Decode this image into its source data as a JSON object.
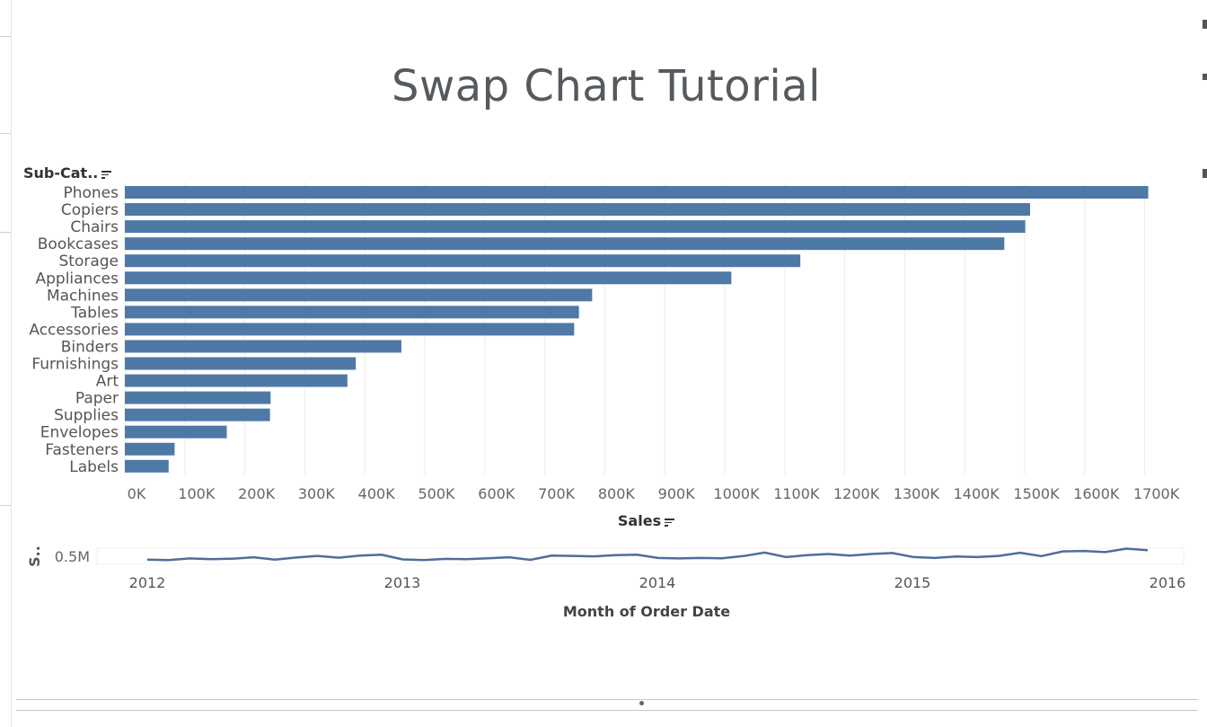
{
  "title": "Swap Chart Tutorial",
  "colors": {
    "bar": "#4e79a7",
    "line": "#4e6e99",
    "grid": "#ededed"
  },
  "chart_data": [
    {
      "type": "bar",
      "orientation": "horizontal",
      "ylabel": "Sub-Cat..",
      "xlabel": "Sales",
      "xlim": [
        0,
        1750000
      ],
      "grid": true,
      "categories": [
        "Phones",
        "Copiers",
        "Chairs",
        "Bookcases",
        "Storage",
        "Appliances",
        "Machines",
        "Tables",
        "Accessories",
        "Binders",
        "Furnishings",
        "Art",
        "Paper",
        "Supplies",
        "Envelopes",
        "Fasteners",
        "Labels"
      ],
      "values": [
        1706000,
        1509000,
        1501000,
        1466000,
        1126000,
        1011000,
        779000,
        757000,
        749000,
        461000,
        385000,
        371000,
        243000,
        242000,
        170000,
        83000,
        73000
      ],
      "ticks": [
        {
          "v": 0,
          "label": "0K"
        },
        {
          "v": 100000,
          "label": "100K"
        },
        {
          "v": 200000,
          "label": "200K"
        },
        {
          "v": 300000,
          "label": "300K"
        },
        {
          "v": 400000,
          "label": "400K"
        },
        {
          "v": 500000,
          "label": "500K"
        },
        {
          "v": 600000,
          "label": "600K"
        },
        {
          "v": 700000,
          "label": "700K"
        },
        {
          "v": 800000,
          "label": "800K"
        },
        {
          "v": 900000,
          "label": "900K"
        },
        {
          "v": 1000000,
          "label": "1000K"
        },
        {
          "v": 1100000,
          "label": "1100K"
        },
        {
          "v": 1200000,
          "label": "1200K"
        },
        {
          "v": 1300000,
          "label": "1300K"
        },
        {
          "v": 1400000,
          "label": "1400K"
        },
        {
          "v": 1500000,
          "label": "1500K"
        },
        {
          "v": 1600000,
          "label": "1600K"
        },
        {
          "v": 1700000,
          "label": "1700K"
        }
      ]
    },
    {
      "type": "line",
      "ylabel": "S..",
      "xlabel": "Month of Order Date",
      "ytick": "0.5M",
      "x_ticks": [
        "2012",
        "2013",
        "2014",
        "2015",
        "2016"
      ],
      "x_start": "2012-01",
      "x_end": "2016-01",
      "x": [
        "2012-01",
        "2012-02",
        "2012-03",
        "2012-04",
        "2012-05",
        "2012-06",
        "2012-07",
        "2012-08",
        "2012-09",
        "2012-10",
        "2012-11",
        "2012-12",
        "2013-01",
        "2013-02",
        "2013-03",
        "2013-04",
        "2013-05",
        "2013-06",
        "2013-07",
        "2013-08",
        "2013-09",
        "2013-10",
        "2013-11",
        "2013-12",
        "2014-01",
        "2014-02",
        "2014-03",
        "2014-04",
        "2014-05",
        "2014-06",
        "2014-07",
        "2014-08",
        "2014-09",
        "2014-10",
        "2014-11",
        "2014-12",
        "2015-01",
        "2015-02",
        "2015-03",
        "2015-04",
        "2015-05",
        "2015-06",
        "2015-07",
        "2015-08",
        "2015-09",
        "2015-10",
        "2015-11",
        "2015-12"
      ],
      "values": [
        0.28,
        0.26,
        0.33,
        0.3,
        0.32,
        0.38,
        0.28,
        0.37,
        0.44,
        0.36,
        0.45,
        0.49,
        0.29,
        0.26,
        0.31,
        0.3,
        0.34,
        0.38,
        0.27,
        0.45,
        0.44,
        0.42,
        0.47,
        0.49,
        0.35,
        0.33,
        0.35,
        0.34,
        0.43,
        0.58,
        0.39,
        0.47,
        0.52,
        0.45,
        0.52,
        0.56,
        0.39,
        0.35,
        0.41,
        0.39,
        0.44,
        0.57,
        0.43,
        0.63,
        0.65,
        0.6,
        0.75,
        0.68
      ],
      "ylim": [
        0,
        1.0
      ]
    }
  ]
}
